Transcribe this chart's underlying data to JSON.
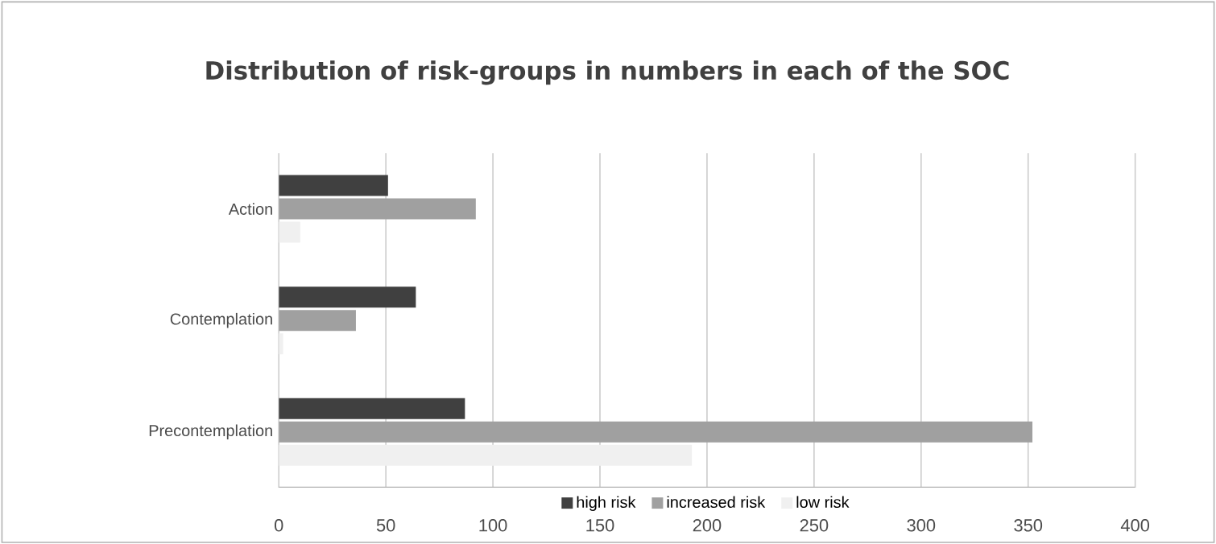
{
  "chart_data": {
    "type": "bar",
    "orientation": "horizontal",
    "title": "Distribution of risk-groups in numbers in each of the SOC",
    "categories": [
      "Action",
      "Contemplation",
      "Precontemplation"
    ],
    "series": [
      {
        "name": "high risk",
        "color": "#404040",
        "values": [
          51,
          64,
          87
        ]
      },
      {
        "name": "increased risk",
        "color": "#a0a0a0",
        "values": [
          92,
          36,
          352
        ]
      },
      {
        "name": "low risk",
        "color": "#f0f0f0",
        "values": [
          10,
          2,
          193
        ]
      }
    ],
    "xlim": [
      0,
      400
    ],
    "xticks": [
      0,
      50,
      100,
      150,
      200,
      250,
      300,
      350,
      400
    ],
    "grid": "x",
    "legend": "bottom"
  }
}
